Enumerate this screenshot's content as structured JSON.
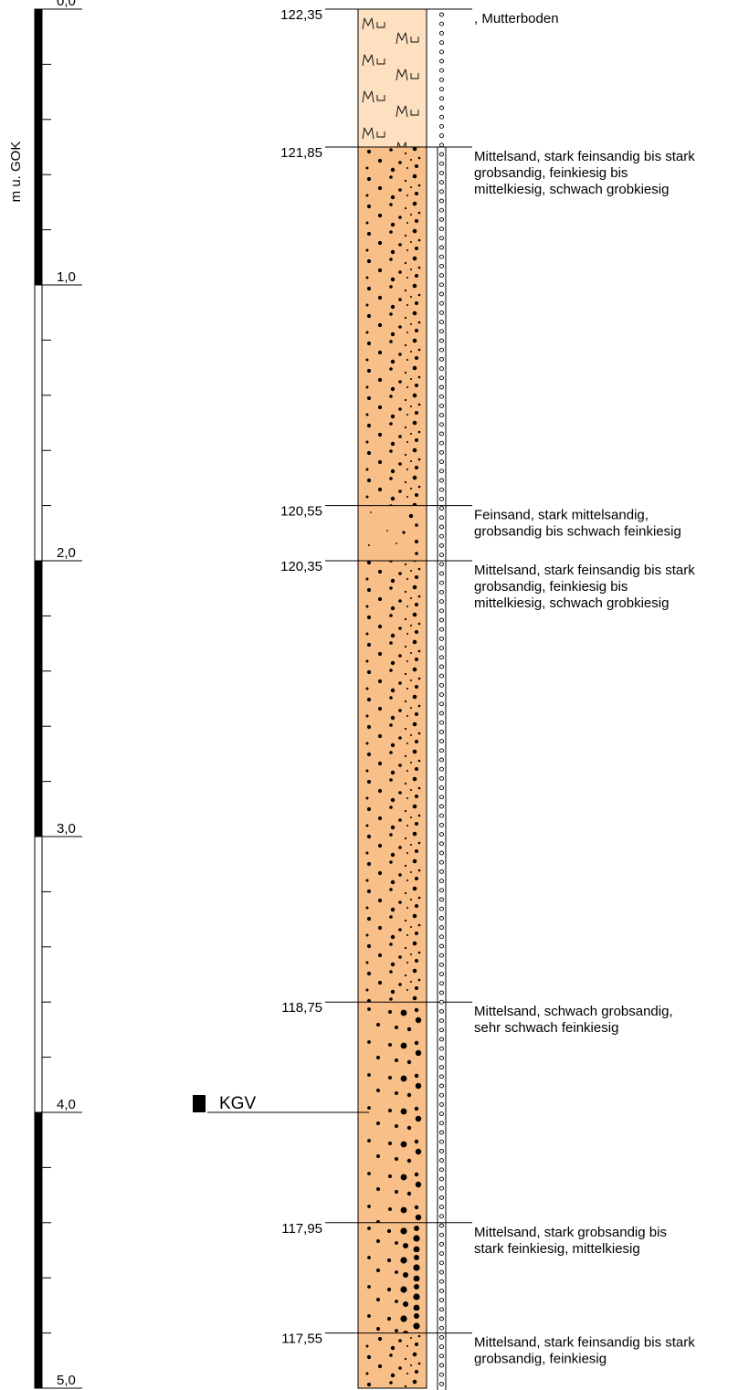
{
  "depth_scale": {
    "axis_label": "m u. GOK",
    "ticks": [
      "0,0",
      "1,0",
      "2,0",
      "3,0",
      "4,0",
      "5,0"
    ]
  },
  "colors": {
    "topsoil_fill": "#fde0c0",
    "sand_fill": "#f9bf88",
    "outline": "#000000"
  },
  "layers": [
    {
      "elevation": "122,35",
      "top_m": 0.0,
      "bottom_m": 0.5,
      "pattern": "topsoil",
      "description": [
        ", Mutterboden"
      ]
    },
    {
      "elevation": "121,85",
      "top_m": 0.5,
      "bottom_m": 1.8,
      "pattern": "sand-gravel",
      "description": [
        "Mittelsand, stark feinsandig bis stark",
        "grobsandig, feinkiesig bis",
        "mittelkiesig, schwach grobkiesig"
      ]
    },
    {
      "elevation": "120,55",
      "top_m": 1.8,
      "bottom_m": 2.0,
      "pattern": "fine-sand",
      "description": [
        "Feinsand, stark mittelsandig,",
        "grobsandig bis schwach feinkiesig"
      ]
    },
    {
      "elevation": "120,35",
      "top_m": 2.0,
      "bottom_m": 3.6,
      "pattern": "sand-gravel",
      "description": [
        "Mittelsand, stark feinsandig bis stark",
        "grobsandig, feinkiesig bis",
        "mittelkiesig, schwach grobkiesig"
      ]
    },
    {
      "elevation": "118,75",
      "top_m": 3.6,
      "bottom_m": 4.4,
      "pattern": "coarse-sand",
      "description": [
        "Mittelsand, schwach grobsandig,",
        "sehr schwach feinkiesig"
      ]
    },
    {
      "elevation": "117,95",
      "top_m": 4.4,
      "bottom_m": 4.8,
      "pattern": "gravelly-sand",
      "description": [
        "Mittelsand, stark grobsandig bis",
        "stark feinkiesig, mittelkiesig"
      ]
    },
    {
      "elevation": "117,55",
      "top_m": 4.8,
      "bottom_m": 5.0,
      "pattern": "sand-gravel",
      "description": [
        "Mittelsand, stark feinsandig bis stark",
        "grobsandig, feinkiesig"
      ]
    }
  ],
  "groundwater": {
    "label": "KGV",
    "depth_m": 4.0
  },
  "soil_symbol": "Mu"
}
